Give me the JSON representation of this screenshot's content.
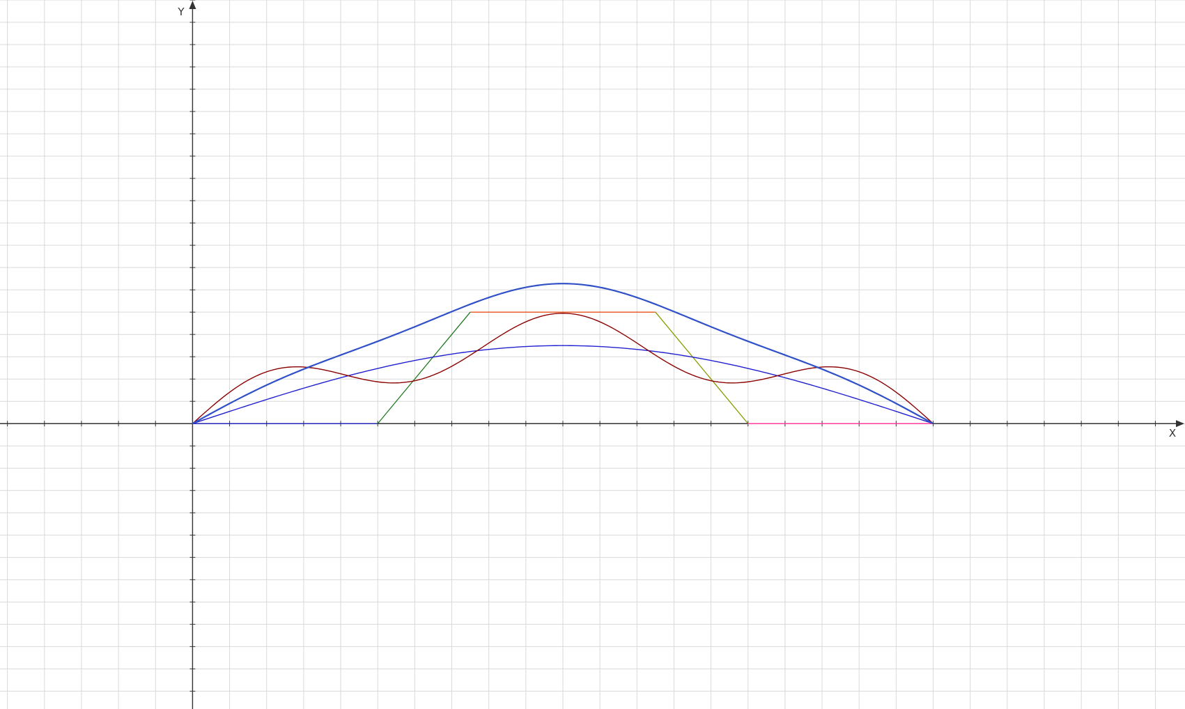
{
  "colors": {
    "background": "#ffffff",
    "grid": "#d9d9d9",
    "axis": "#333333",
    "blue": "#2020d0",
    "dark_red": "#8b0000",
    "green": "#1e7a1e",
    "orange_red": "#e8501a",
    "olive": "#8a9a00",
    "magenta": "#ff3ca0",
    "steel_blue": "#3050c8"
  },
  "chart_data": {
    "type": "line",
    "title": "",
    "xlabel": "X",
    "ylabel": "Y",
    "grid": true,
    "xlim": [
      -5.2,
      26.8
    ],
    "ylim": [
      -12.8,
      19.0
    ],
    "x_gridstep": 1,
    "y_gridstep": 1,
    "series": [
      {
        "kind": "polyline",
        "color": "#2020d0",
        "width": 1.2,
        "points": [
          [
            0,
            0
          ],
          [
            5,
            0
          ]
        ]
      },
      {
        "kind": "polyline",
        "color": "#1e7a1e",
        "width": 1.3,
        "points": [
          [
            5,
            0
          ],
          [
            7.5,
            5
          ]
        ]
      },
      {
        "kind": "polyline",
        "color": "#e8501a",
        "width": 1.3,
        "points": [
          [
            7.5,
            5
          ],
          [
            12.5,
            5
          ]
        ]
      },
      {
        "kind": "polyline",
        "color": "#8a9a00",
        "width": 1.3,
        "points": [
          [
            12.5,
            5
          ],
          [
            15,
            0
          ]
        ]
      },
      {
        "kind": "polyline",
        "color": "#ff3ca0",
        "width": 1.4,
        "points": [
          [
            15,
            0
          ],
          [
            20,
            0
          ]
        ]
      },
      {
        "kind": "sine",
        "color": "#2020d0",
        "width": 1.4,
        "x0": 0,
        "x1": 20,
        "a": [
          3.5
        ],
        "steps": 200
      },
      {
        "kind": "sine",
        "color": "#8b0000",
        "width": 1.4,
        "x0": 0,
        "x1": 20,
        "a": [
          3.8,
          0,
          1.15
        ],
        "steps": 200
      },
      {
        "kind": "sine",
        "color": "#3050c8",
        "width": 2.2,
        "x0": 0,
        "x1": 20,
        "a": [
          5.75,
          -0.32,
          0.21
        ],
        "steps": 200
      }
    ]
  }
}
